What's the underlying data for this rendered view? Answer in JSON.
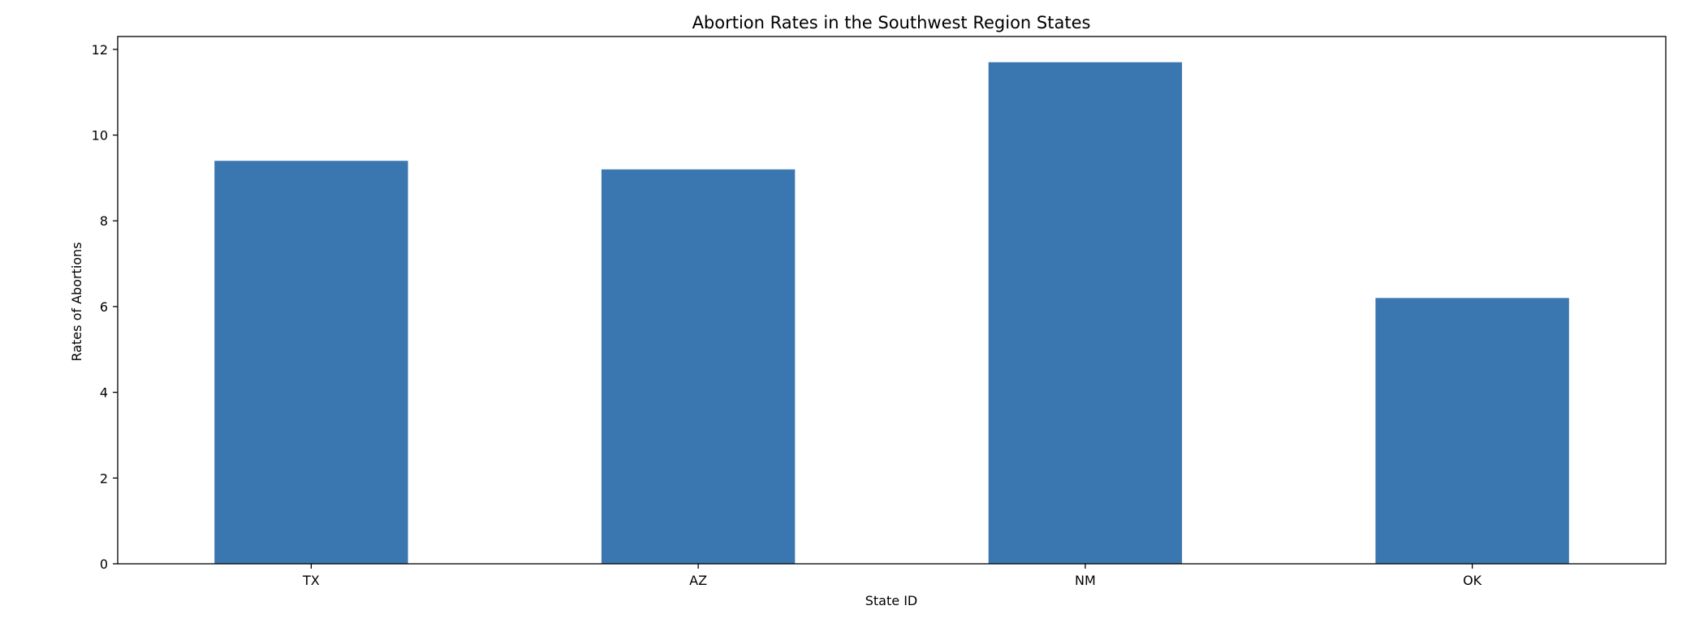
{
  "chart_data": {
    "type": "bar",
    "title": "Abortion Rates in the Southwest Region States",
    "xlabel": "State ID",
    "ylabel": "Rates of Abortions",
    "categories": [
      "TX",
      "AZ",
      "NM",
      "OK"
    ],
    "values": [
      9.4,
      9.2,
      11.7,
      6.2
    ],
    "ylim": [
      0,
      12.3
    ],
    "yticks": [
      0,
      2,
      4,
      6,
      8,
      10,
      12
    ],
    "grid": false,
    "bar_color": "#3a76af"
  }
}
